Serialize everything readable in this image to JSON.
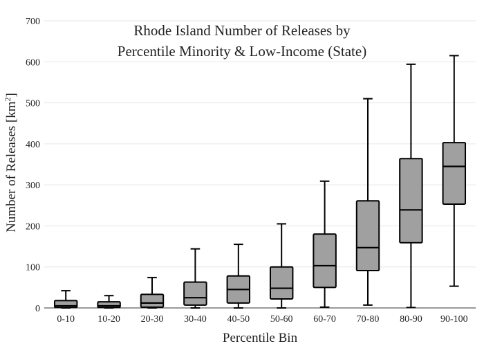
{
  "chart_data": {
    "type": "box",
    "title_line1": "Rhode Island Number of Releases by",
    "title_line2": "Percentile Minority & Low-Income (State)",
    "xlabel": "Percentile Bin",
    "ylabel": "Number of Releases  [km",
    "ylabel_sup": "2",
    "ylabel_end": "]",
    "ylim": [
      0,
      700
    ],
    "yticks": [
      0,
      100,
      200,
      300,
      400,
      500,
      600,
      700
    ],
    "ytick_labels": [
      "0",
      "100",
      "200",
      "300",
      "400",
      "500",
      "600",
      "700"
    ],
    "grid": true,
    "box_color": "#a0a0a0",
    "categories": [
      "0-10",
      "10-20",
      "20-30",
      "30-40",
      "40-50",
      "50-60",
      "60-70",
      "70-80",
      "80-90",
      "90-100"
    ],
    "boxes": [
      {
        "min": 0,
        "q1": 1,
        "median": 5,
        "q3": 18,
        "max": 42
      },
      {
        "min": 0,
        "q1": 1,
        "median": 5,
        "q3": 15,
        "max": 30
      },
      {
        "min": 0,
        "q1": 2,
        "median": 12,
        "q3": 33,
        "max": 74
      },
      {
        "min": 0,
        "q1": 7,
        "median": 25,
        "q3": 63,
        "max": 144
      },
      {
        "min": 0,
        "q1": 12,
        "median": 45,
        "q3": 78,
        "max": 155
      },
      {
        "min": 0,
        "q1": 22,
        "median": 48,
        "q3": 100,
        "max": 205
      },
      {
        "min": 2,
        "q1": 50,
        "median": 103,
        "q3": 180,
        "max": 309
      },
      {
        "min": 7,
        "q1": 91,
        "median": 147,
        "q3": 261,
        "max": 510
      },
      {
        "min": 1,
        "q1": 159,
        "median": 239,
        "q3": 364,
        "max": 594
      },
      {
        "min": 53,
        "q1": 253,
        "median": 345,
        "q3": 403,
        "max": 615
      }
    ]
  }
}
